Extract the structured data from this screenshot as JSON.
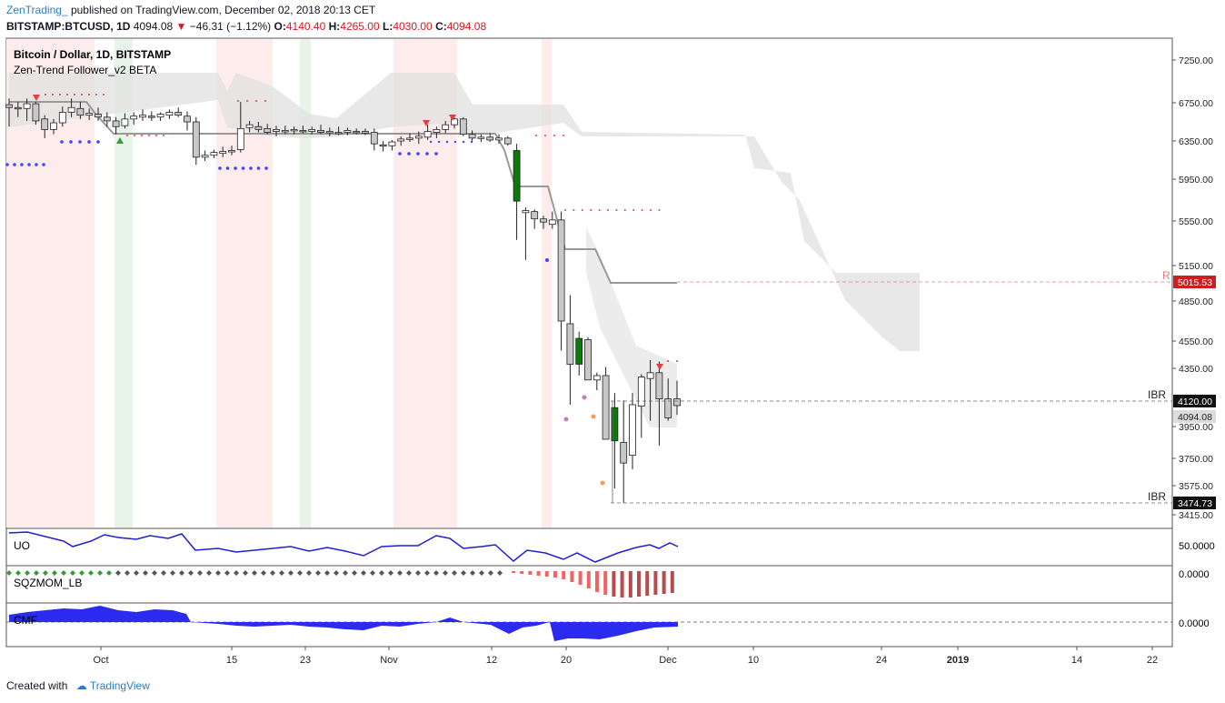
{
  "header": {
    "author": "ZenTrading_",
    "published": "published on TradingView.com, December 02, 2018 20:13 CET",
    "symbol": "BITSTAMP:BTCUSD, 1D",
    "last": "4094.08",
    "change": "−46.31 (−1.12%)",
    "o_label": "O:",
    "o": "4140.40",
    "h_label": "H:",
    "h": "4265.00",
    "l_label": "L:",
    "l": "4030.00",
    "c_label": "C:",
    "c": "4094.08"
  },
  "legend": {
    "title": "Bitcoin / Dollar, 1D, BITSTAMP",
    "indicator": "Zen-Trend Follower_v2 BETA"
  },
  "panes": {
    "uo": "UO",
    "uo_value": "50.0000",
    "sqz": "SQZMOM_LB",
    "sqz_value": "0.0000",
    "cmf": "CMF",
    "cmf_value": "0.0000"
  },
  "footer": {
    "created_with": "Created with",
    "brand": "TradingView"
  },
  "colors": {
    "up": "#ffffff",
    "down": "#c8c8c8",
    "green_body": "#0a7a0a",
    "resistance": "#cc1f1f",
    "cloud": "#e2e2e2",
    "trend_line": "#999999",
    "uo_line": "#1f1fd1",
    "cmf_fill": "#2b2bf0",
    "sqz_neg": "#f06464",
    "sqz_neg_dark": "#b84c4c"
  },
  "chart_data": {
    "type": "candlestick",
    "title": "Bitcoin / Dollar, 1D, BITSTAMP",
    "y_ticks": [
      "7250.00",
      "6750.00",
      "6350.00",
      "5950.00",
      "5550.00",
      "5150.00",
      "4850.00",
      "4550.00",
      "4350.00",
      "3950.00",
      "3750.00",
      "3575.00",
      "3415.00"
    ],
    "x_ticks": [
      "Oct",
      "15",
      "23",
      "Nov",
      "12",
      "20",
      "Dec",
      "10",
      "24",
      "2019",
      "14",
      "22"
    ],
    "price_labels": [
      {
        "label": "R",
        "value": "5015.53"
      },
      {
        "label": "IBR",
        "value": "4120.00"
      },
      {
        "label": "",
        "value": "4094.08"
      },
      {
        "label": "IBR",
        "value": "3474.73"
      }
    ],
    "candles_ohlc": [
      [
        6730,
        6800,
        6500,
        6700
      ],
      [
        6700,
        6760,
        6600,
        6690
      ],
      [
        6690,
        6800,
        6560,
        6740
      ],
      [
        6740,
        6760,
        6520,
        6560
      ],
      [
        6580,
        6620,
        6380,
        6470
      ],
      [
        6470,
        6580,
        6420,
        6540
      ],
      [
        6540,
        6710,
        6500,
        6650
      ],
      [
        6650,
        6800,
        6600,
        6700
      ],
      [
        6690,
        6760,
        6580,
        6620
      ],
      [
        6620,
        6690,
        6570,
        6640
      ],
      [
        6630,
        6700,
        6560,
        6600
      ],
      [
        6600,
        6650,
        6500,
        6560
      ],
      [
        6560,
        6600,
        6420,
        6500
      ],
      [
        6510,
        6640,
        6480,
        6580
      ],
      [
        6580,
        6650,
        6520,
        6610
      ],
      [
        6600,
        6680,
        6560,
        6620
      ],
      [
        6610,
        6660,
        6560,
        6600
      ],
      [
        6600,
        6650,
        6560,
        6630
      ],
      [
        6620,
        6680,
        6580,
        6650
      ],
      [
        6650,
        6700,
        6600,
        6620
      ],
      [
        6610,
        6660,
        6460,
        6550
      ],
      [
        6550,
        6600,
        6100,
        6180
      ],
      [
        6180,
        6250,
        6140,
        6200
      ],
      [
        6200,
        6260,
        6170,
        6230
      ],
      [
        6220,
        6290,
        6180,
        6240
      ],
      [
        6240,
        6300,
        6200,
        6250
      ],
      [
        6260,
        6760,
        6230,
        6480
      ],
      [
        6490,
        6560,
        6440,
        6520
      ],
      [
        6500,
        6550,
        6440,
        6470
      ],
      [
        6480,
        6530,
        6420,
        6440
      ],
      [
        6450,
        6510,
        6400,
        6470
      ],
      [
        6460,
        6510,
        6420,
        6460
      ],
      [
        6460,
        6500,
        6420,
        6470
      ],
      [
        6460,
        6510,
        6430,
        6450
      ],
      [
        6450,
        6500,
        6420,
        6470
      ],
      [
        6460,
        6520,
        6420,
        6440
      ],
      [
        6440,
        6490,
        6400,
        6450
      ],
      [
        6440,
        6500,
        6410,
        6430
      ],
      [
        6440,
        6490,
        6410,
        6460
      ],
      [
        6450,
        6480,
        6420,
        6440
      ],
      [
        6450,
        6480,
        6410,
        6430
      ],
      [
        6440,
        6480,
        6250,
        6320
      ],
      [
        6310,
        6350,
        6240,
        6300
      ],
      [
        6300,
        6360,
        6250,
        6340
      ],
      [
        6350,
        6400,
        6300,
        6370
      ],
      [
        6370,
        6430,
        6340,
        6380
      ],
      [
        6380,
        6450,
        6320,
        6400
      ],
      [
        6390,
        6520,
        6360,
        6450
      ],
      [
        6440,
        6500,
        6380,
        6470
      ],
      [
        6470,
        6560,
        6430,
        6520
      ],
      [
        6520,
        6620,
        6480,
        6580
      ],
      [
        6580,
        6600,
        6400,
        6420
      ],
      [
        6420,
        6460,
        6350,
        6380
      ],
      [
        6380,
        6420,
        6340,
        6390
      ],
      [
        6390,
        6430,
        6340,
        6360
      ],
      [
        6360,
        6420,
        6320,
        6380
      ],
      [
        6380,
        6400,
        6300,
        6320
      ],
      [
        5740,
        6320,
        5380,
        6250
      ],
      [
        5630,
        5680,
        5200,
        5650
      ],
      [
        5640,
        5660,
        5480,
        5570
      ],
      [
        5570,
        5600,
        5480,
        5540
      ],
      [
        5520,
        5640,
        5480,
        5560
      ],
      [
        5560,
        5640,
        4480,
        4700
      ],
      [
        4680,
        4900,
        4100,
        4380
      ],
      [
        4380,
        4620,
        4300,
        4570
      ],
      [
        4560,
        4580,
        4280,
        4270
      ],
      [
        4270,
        4320,
        4200,
        4300
      ],
      [
        4300,
        4360,
        3880,
        3870
      ],
      [
        3860,
        4180,
        3560,
        4080
      ],
      [
        3850,
        4130,
        3480,
        3720
      ],
      [
        3770,
        4180,
        3680,
        4100
      ],
      [
        4090,
        4310,
        3880,
        4290
      ],
      [
        4280,
        4410,
        3990,
        4320
      ],
      [
        4320,
        4400,
        3830,
        4140
      ],
      [
        4140,
        4280,
        3990,
        4010
      ],
      [
        4140,
        4265,
        4030,
        4094
      ]
    ]
  }
}
